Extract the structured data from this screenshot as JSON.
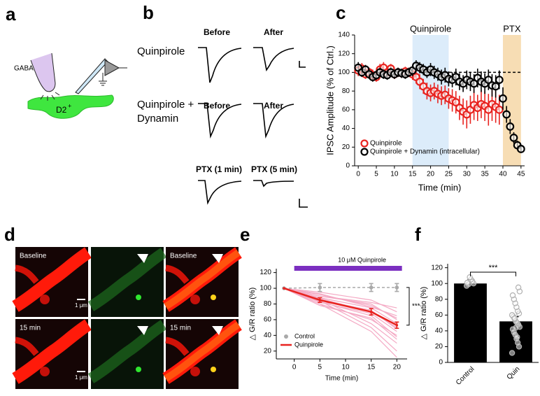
{
  "panel_labels": [
    "a",
    "b",
    "c",
    "d",
    "e",
    "f"
  ],
  "panel_a": {
    "pipette": "GABA",
    "cell": "D2",
    "cell_sup": "+"
  },
  "panel_b": {
    "row1": "Quinpirole",
    "row2_line1": "Quinpirole +",
    "row2_line2": "Dynamin",
    "before": "Before",
    "after": "After",
    "ptx_early": "PTX (1 min)",
    "ptx_late": "PTX (5 min)"
  },
  "panel_d": {
    "baseline": "Baseline",
    "later": "15 min",
    "scale": "1 μm"
  },
  "chart_data": [
    {
      "type": "line",
      "xlabel": "Time (min)",
      "ylabel": "IPSC Amplitude (% of Ctrl.)",
      "x": [
        0,
        1,
        2,
        3,
        4,
        5,
        6,
        7,
        8,
        9,
        10,
        11,
        12,
        13,
        14,
        15,
        16,
        17,
        18,
        19,
        20,
        21,
        22,
        23,
        24,
        25,
        26,
        27,
        28,
        29,
        30,
        31,
        32,
        33,
        34,
        35,
        36,
        37,
        38,
        39,
        40,
        41,
        42,
        43,
        44,
        45
      ],
      "xlim": [
        -1,
        46
      ],
      "xticks": [
        0,
        5,
        10,
        15,
        20,
        25,
        30,
        35,
        40,
        45
      ],
      "ylim": [
        0,
        140
      ],
      "yticks": [
        0,
        20,
        40,
        60,
        80,
        100,
        120,
        140
      ],
      "marker": "open",
      "markers_only": true,
      "legend": "lower left",
      "regions": [
        {
          "label": "Quinpirole",
          "from": 15,
          "to": 25,
          "color": "#dcecfa"
        },
        {
          "label": "PTX",
          "from": 40,
          "to": 45,
          "color": "#f7ddb4"
        }
      ],
      "reference_line": {
        "value": 100,
        "from": 17,
        "to": 45
      },
      "series": [
        {
          "name": "Quinpirole",
          "color": "#e8231f",
          "values": [
            102,
            104,
            98,
            100,
            97,
            95,
            103,
            105,
            100,
            104,
            98,
            100,
            99,
            101,
            100,
            98,
            95,
            90,
            85,
            80,
            78,
            80,
            77,
            75,
            76,
            72,
            70,
            68,
            62,
            58,
            55,
            60,
            65,
            62,
            66,
            64,
            60,
            66,
            63,
            60,
            null,
            null,
            null,
            null,
            null,
            null
          ],
          "errors": [
            6,
            6,
            5,
            5,
            6,
            5,
            6,
            6,
            5,
            5,
            5,
            5,
            5,
            5,
            5,
            6,
            7,
            8,
            8,
            9,
            9,
            9,
            10,
            10,
            10,
            11,
            12,
            12,
            13,
            14,
            15,
            15,
            16,
            14,
            15,
            16,
            17,
            18,
            17,
            16,
            null,
            null,
            null,
            null,
            null,
            null
          ]
        },
        {
          "name": "Quinpirole + Dynamin (intracellular)",
          "color": "#000000",
          "values": [
            105,
            100,
            103,
            98,
            95,
            97,
            100,
            98,
            97,
            100,
            98,
            100,
            99,
            98,
            100,
            102,
            107,
            105,
            103,
            100,
            103,
            100,
            98,
            95,
            97,
            93,
            92,
            95,
            90,
            88,
            92,
            90,
            88,
            94,
            90,
            88,
            92,
            86,
            85,
            92,
            72,
            55,
            42,
            30,
            22,
            18
          ],
          "errors": [
            6,
            5,
            5,
            5,
            5,
            5,
            5,
            5,
            5,
            5,
            5,
            5,
            5,
            5,
            5,
            6,
            6,
            6,
            6,
            6,
            7,
            7,
            7,
            8,
            8,
            8,
            8,
            9,
            9,
            9,
            10,
            10,
            10,
            10,
            11,
            11,
            11,
            12,
            12,
            10,
            12,
            9,
            8,
            6,
            5,
            4
          ]
        }
      ]
    },
    {
      "type": "line",
      "xlabel": "Time (min)",
      "ylabel": "△ G/R ratio (%)",
      "x": [
        -2,
        5,
        15,
        20
      ],
      "xlim": [
        -3.5,
        22
      ],
      "xticks": [
        0,
        5,
        10,
        15,
        20
      ],
      "ylim": [
        10,
        125
      ],
      "yticks": [
        20,
        40,
        60,
        80,
        100,
        120
      ],
      "marker": "filled",
      "legend": "lower left",
      "significance": "***",
      "annotation_bar": {
        "label": "10 μM Quinpirole",
        "from": 0,
        "to": 21,
        "color": "#7b2fc0"
      },
      "individual": {
        "color": "#f4a9c4",
        "values": [
          [
            100,
            95,
            85,
            70
          ],
          [
            100,
            90,
            80,
            60
          ],
          [
            100,
            88,
            75,
            55
          ],
          [
            100,
            85,
            72,
            48
          ],
          [
            100,
            82,
            68,
            45
          ],
          [
            100,
            80,
            60,
            40
          ],
          [
            100,
            92,
            78,
            62
          ],
          [
            100,
            87,
            70,
            50
          ],
          [
            100,
            83,
            65,
            38
          ],
          [
            100,
            78,
            62,
            35
          ],
          [
            100,
            90,
            82,
            75
          ],
          [
            100,
            86,
            55,
            30
          ],
          [
            100,
            84,
            50,
            20
          ],
          [
            100,
            93,
            76,
            65
          ],
          [
            100,
            80,
            45,
            12
          ]
        ]
      },
      "series": [
        {
          "name": "Control",
          "color": "#a9a9a9",
          "dashed": true,
          "values": [
            100,
            101,
            101,
            101
          ],
          "errors": [
            0,
            5,
            5,
            5
          ]
        },
        {
          "name": "Quinpirole",
          "color": "#e8231f",
          "values": [
            100,
            85,
            70,
            53
          ],
          "errors": [
            0,
            3,
            4,
            4
          ]
        }
      ]
    },
    {
      "type": "bar",
      "ylabel": "△ G/R ratio (%)",
      "categories": [
        "Control",
        "Quin"
      ],
      "values": [
        100,
        52
      ],
      "errors": [
        5,
        6
      ],
      "color": "#000000",
      "point_color": "#b0b0b0",
      "ylim": [
        0,
        125
      ],
      "yticks": [
        0,
        20,
        40,
        60,
        80,
        100,
        120
      ],
      "significance": "***",
      "points": [
        [
          97,
          100,
          103,
          105,
          108,
          99,
          101
        ],
        [
          12,
          20,
          25,
          30,
          35,
          38,
          42,
          45,
          48,
          50,
          52,
          55,
          58,
          60,
          62,
          65,
          70,
          75,
          80,
          85,
          90,
          95,
          32,
          44,
          56
        ]
      ]
    }
  ]
}
